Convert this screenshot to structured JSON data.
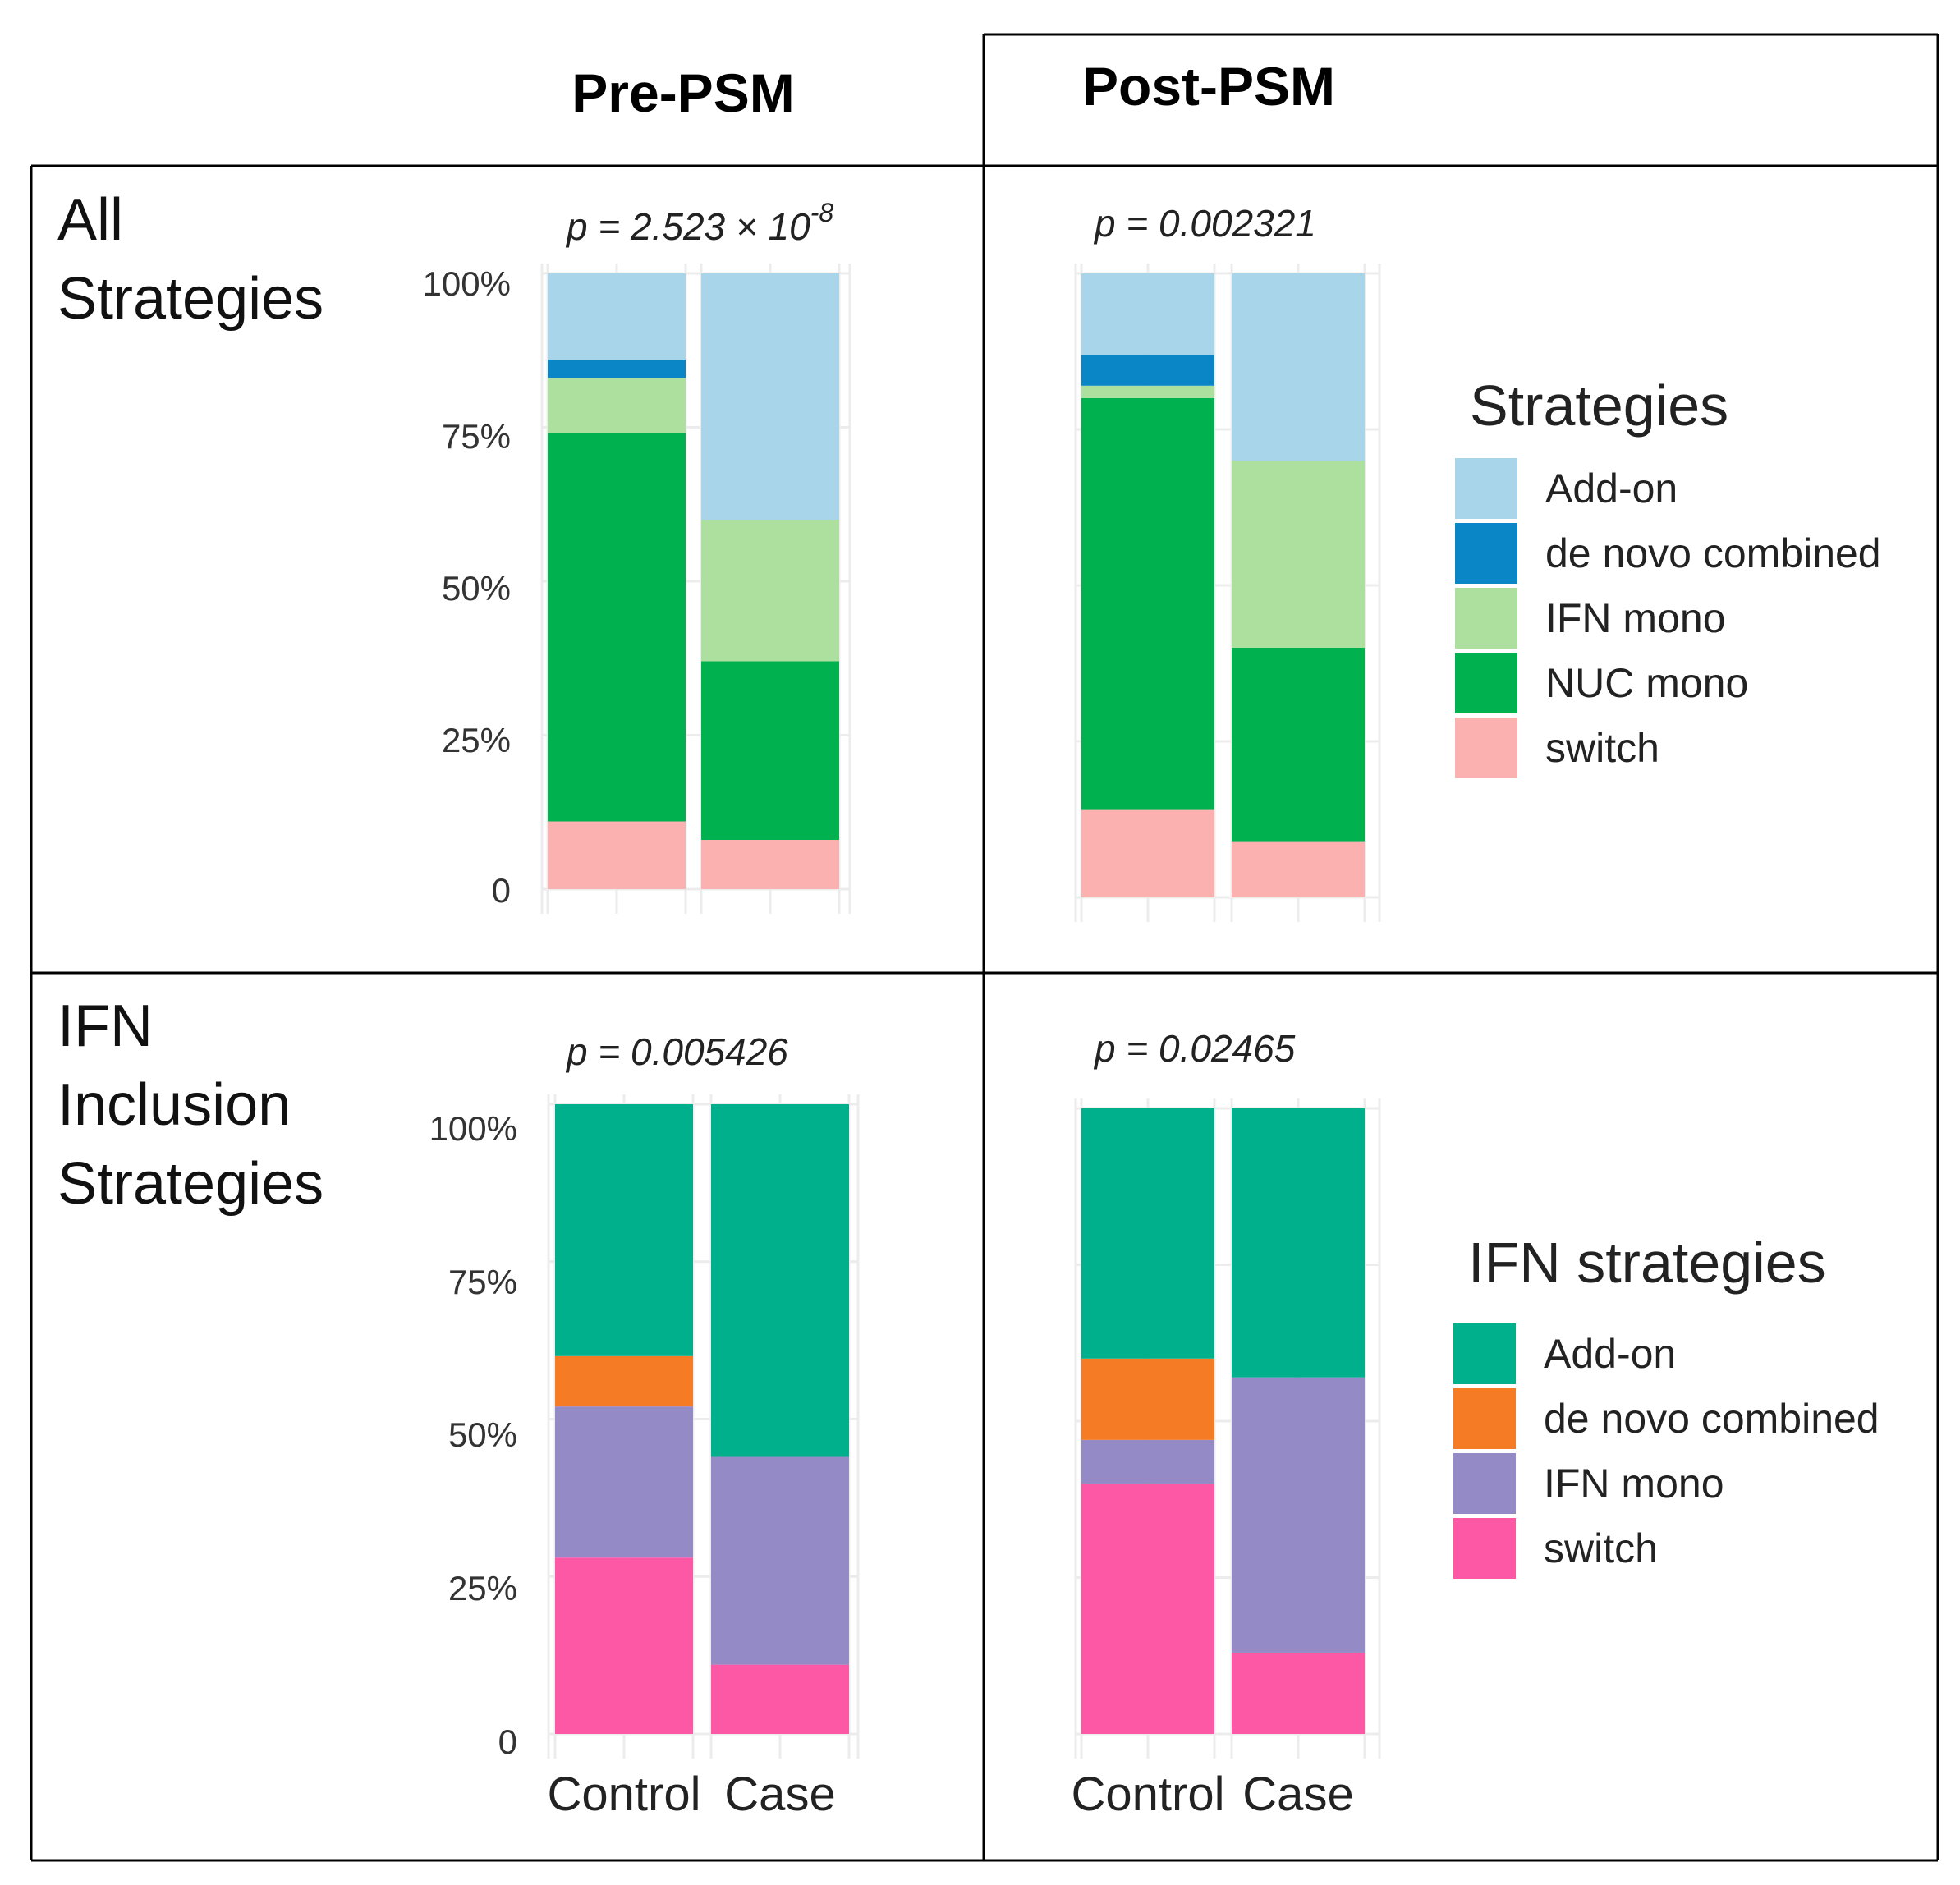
{
  "figure": {
    "col_titles": [
      "Pre-PSM",
      "Post-PSM"
    ],
    "row_labels": [
      [
        "All",
        "Strategies"
      ],
      [
        "IFN",
        "Inclusion",
        "Strategies"
      ]
    ]
  },
  "legends": [
    {
      "title": "Strategies",
      "items": [
        {
          "label": "Add-on",
          "color": "#a9d5ea"
        },
        {
          "label": "de novo combined",
          "color": "#0a85c6"
        },
        {
          "label": "IFN mono",
          "color": "#addf9f"
        },
        {
          "label": "NUC mono",
          "color": "#00b150"
        },
        {
          "label": "switch",
          "color": "#fcb1b1"
        }
      ]
    },
    {
      "title": "IFN strategies",
      "items": [
        {
          "label": "Add-on",
          "color": "#00b08d"
        },
        {
          "label": "de novo combined",
          "color": "#f57c25"
        },
        {
          "label": "IFN mono",
          "color": "#938ac6"
        },
        {
          "label": "switch",
          "color": "#fd58a6"
        }
      ]
    }
  ],
  "chart_data": [
    {
      "type": "bar",
      "stacked": true,
      "panel": "All Strategies, Pre-PSM",
      "categories": [
        "Control",
        "Case"
      ],
      "show_category_labels": false,
      "yticks": [
        "0",
        "25%",
        "50%",
        "75%",
        "100%"
      ],
      "ylim": [
        0,
        100
      ],
      "pvalue": {
        "prefix": "p = 2.523 × 10",
        "exponent": "-8"
      },
      "series": [
        {
          "name": "switch",
          "values": [
            11,
            8
          ]
        },
        {
          "name": "NUC mono",
          "values": [
            63,
            29
          ]
        },
        {
          "name": "IFN mono",
          "values": [
            9,
            23
          ]
        },
        {
          "name": "de novo combined",
          "values": [
            3,
            0
          ]
        },
        {
          "name": "Add-on",
          "values": [
            14,
            40
          ]
        }
      ]
    },
    {
      "type": "bar",
      "stacked": true,
      "panel": "All Strategies, Post-PSM",
      "categories": [
        "Control",
        "Case"
      ],
      "show_category_labels": false,
      "yticks": [],
      "ylim": [
        0,
        100
      ],
      "pvalue": {
        "prefix": "p = 0.002321",
        "exponent": ""
      },
      "series": [
        {
          "name": "switch",
          "values": [
            14,
            9
          ]
        },
        {
          "name": "NUC mono",
          "values": [
            66,
            31
          ]
        },
        {
          "name": "IFN mono",
          "values": [
            2,
            30
          ]
        },
        {
          "name": "de novo combined",
          "values": [
            5,
            0
          ]
        },
        {
          "name": "Add-on",
          "values": [
            13,
            30
          ]
        }
      ]
    },
    {
      "type": "bar",
      "stacked": true,
      "panel": "IFN Inclusion Strategies, Pre-PSM",
      "categories": [
        "Control",
        "Case"
      ],
      "show_category_labels": true,
      "yticks": [
        "0",
        "25%",
        "50%",
        "75%",
        "100%"
      ],
      "ylim": [
        0,
        100
      ],
      "pvalue": {
        "prefix": "p = 0.005426",
        "exponent": ""
      },
      "series": [
        {
          "name": "switch",
          "values": [
            28,
            11
          ]
        },
        {
          "name": "IFN mono",
          "values": [
            24,
            33
          ]
        },
        {
          "name": "de novo combined",
          "values": [
            8,
            0
          ]
        },
        {
          "name": "Add-on",
          "values": [
            40,
            56
          ]
        }
      ]
    },
    {
      "type": "bar",
      "stacked": true,
      "panel": "IFN Inclusion Strategies, Post-PSM",
      "categories": [
        "Control",
        "Case"
      ],
      "show_category_labels": true,
      "yticks": [],
      "ylim": [
        0,
        100
      ],
      "pvalue": {
        "prefix": "p = 0.02465",
        "exponent": ""
      },
      "series": [
        {
          "name": "switch",
          "values": [
            40,
            13
          ]
        },
        {
          "name": "IFN mono",
          "values": [
            7,
            44
          ]
        },
        {
          "name": "de novo combined",
          "values": [
            13,
            0
          ]
        },
        {
          "name": "Add-on",
          "values": [
            40,
            43
          ]
        }
      ]
    }
  ]
}
